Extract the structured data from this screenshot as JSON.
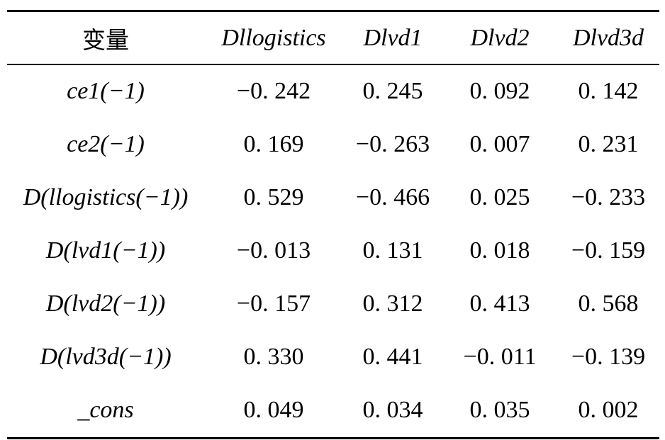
{
  "table": {
    "headers": [
      "变量",
      "Dllogistics",
      "Dlvd1",
      "Dlvd2",
      "Dlvd3d"
    ],
    "rows": [
      {
        "label": "ce1(−1)",
        "values": [
          "−0. 242",
          "0. 245",
          "0. 092",
          "0. 142"
        ]
      },
      {
        "label": "ce2(−1)",
        "values": [
          "0. 169",
          "−0. 263",
          "0. 007",
          "0. 231"
        ]
      },
      {
        "label": "D(llogistics(−1))",
        "values": [
          "0. 529",
          "−0. 466",
          "0. 025",
          "−0. 233"
        ]
      },
      {
        "label": "D(lvd1(−1))",
        "values": [
          "−0. 013",
          "0. 131",
          "0. 018",
          "−0. 159"
        ]
      },
      {
        "label": "D(lvd2(−1))",
        "values": [
          "−0. 157",
          "0. 312",
          "0. 413",
          "0. 568"
        ]
      },
      {
        "label": "D(lvd3d(−1))",
        "values": [
          "0. 330",
          "0. 441",
          "−0. 011",
          "−0. 139"
        ]
      },
      {
        "label": "_cons",
        "values": [
          "0. 049",
          "0. 034",
          "0. 035",
          "0. 002"
        ]
      }
    ]
  }
}
